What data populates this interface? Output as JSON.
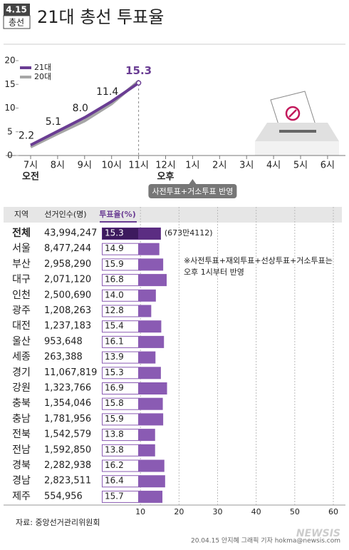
{
  "header": {
    "badge_top": "4.15",
    "badge_bottom": "총선",
    "title": "21대 총선 투표율"
  },
  "chart_data": [
    {
      "type": "line",
      "categories": [
        "7시",
        "8시",
        "9시",
        "10시",
        "11시",
        "12시",
        "1시",
        "2시",
        "3시",
        "4시",
        "5시",
        "6시"
      ],
      "x_sublabels": [
        "오전",
        null,
        null,
        null,
        null,
        "오후",
        null,
        null,
        null,
        null,
        null,
        null
      ],
      "ylim": [
        0,
        20
      ],
      "yticks": [
        0,
        5,
        10,
        15,
        20
      ],
      "series": [
        {
          "name": "21대",
          "color": "#6a3d93",
          "values": [
            2.2,
            5.1,
            8.0,
            11.4,
            15.3,
            null,
            null,
            null,
            null,
            null,
            null,
            null
          ],
          "value_labels": [
            "2.2",
            "5.1",
            "8.0",
            "11.4",
            "15.3",
            null,
            null,
            null,
            null,
            null,
            null,
            null
          ]
        },
        {
          "name": "20대",
          "color": "#a6a6a6",
          "values": [
            1.8,
            4.6,
            7.3,
            10.9,
            15.7,
            null,
            null,
            null,
            null,
            null,
            null,
            null
          ]
        }
      ],
      "legend": "top-left",
      "annotation": "사전투표+거소투표 반영"
    },
    {
      "type": "hbar",
      "columns": [
        "지역",
        "선거인수(명)",
        "투표율(%)"
      ],
      "categories": [
        "전체",
        "서울",
        "부산",
        "대구",
        "인천",
        "광주",
        "대전",
        "울산",
        "세종",
        "경기",
        "강원",
        "충북",
        "충남",
        "전북",
        "전남",
        "경북",
        "경남",
        "제주"
      ],
      "electors": [
        "43,994,247",
        "8,477,244",
        "2,958,290",
        "2,071,120",
        "2,500,690",
        "1,208,263",
        "1,237,183",
        "953,648",
        "263,388",
        "11,067,819",
        "1,323,766",
        "1,354,046",
        "1,781,956",
        "1,542,579",
        "1,592,850",
        "2,282,938",
        "2,823,511",
        "554,956"
      ],
      "values": [
        15.3,
        14.9,
        15.9,
        16.8,
        14.0,
        12.8,
        15.4,
        16.1,
        13.9,
        15.3,
        16.9,
        15.8,
        15.9,
        13.8,
        13.8,
        16.2,
        16.4,
        15.7
      ],
      "value_labels": [
        "15.3",
        "14.9",
        "15.9",
        "16.8",
        "14.0",
        "12.8",
        "15.4",
        "16.1",
        "13.9",
        "15.3",
        "16.9",
        "15.8",
        "15.9",
        "13.8",
        "13.8",
        "16.2",
        "16.4",
        "15.7"
      ],
      "color": "#8a5bb3",
      "highlight_color": "#5b2d82",
      "xlim": [
        0,
        60
      ],
      "xticks": [
        10,
        20,
        30,
        40,
        50,
        60
      ],
      "grid": true,
      "annotation": "(673만4112)",
      "note": [
        "※사전투표+재외투표+선상투표+거소투표는",
        "오후 1시부터 반영"
      ]
    }
  ],
  "footer": {
    "source": "자료: 중앙선거관리위원회",
    "credit": "20.04.15 안지혜 그래픽 기자 hokma@newsis.com",
    "watermark": "NEWSIS"
  }
}
